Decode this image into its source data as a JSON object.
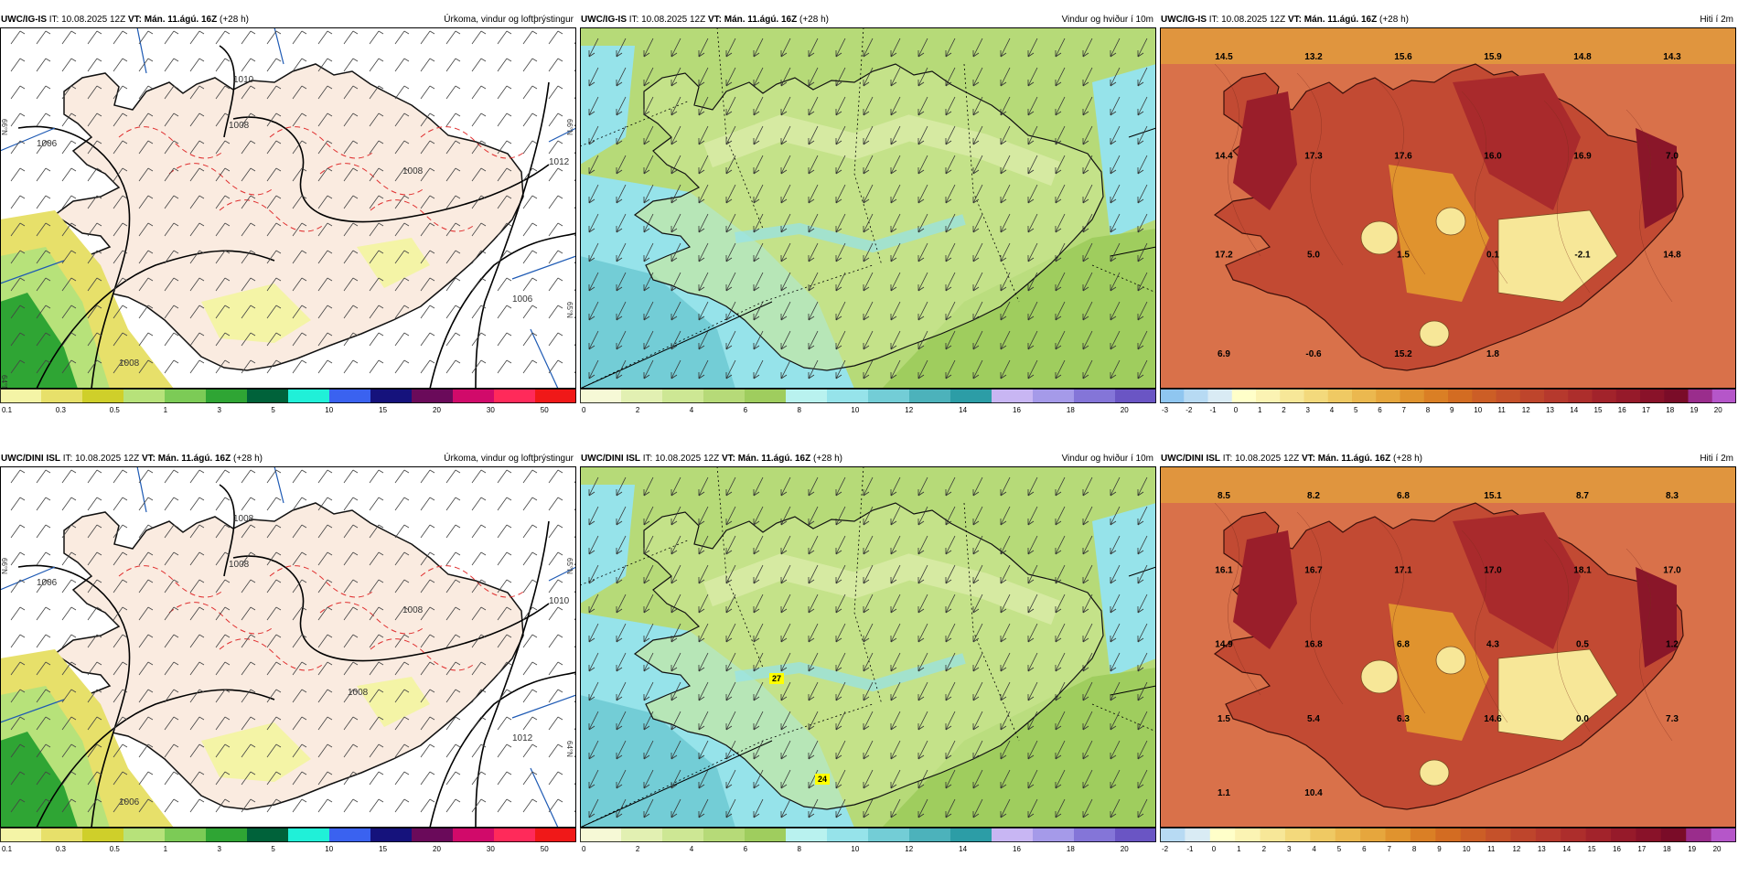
{
  "rows": [
    {
      "model": "UWC/IG-IS",
      "it": "IT: 10.08.2025 12Z",
      "vt": "VT: Mán. 11.ágú. 16Z",
      "lead": "(+28 h)",
      "panels": {
        "precip": {
          "title": "Úrkoma, vindur og loftþrýstingur",
          "isobars": [
            "1006",
            "1008",
            "1008",
            "1010",
            "1012",
            "1006",
            "1008"
          ],
          "lat_labels": [
            "66°N",
            "66°N",
            "65°N",
            "64°N"
          ]
        },
        "wind": {
          "title": "Vindur og hviður í 10m"
        },
        "temp": {
          "title": "Hiti í 2m",
          "values": [
            "14.5",
            "13.2",
            "15.6",
            "15.9",
            "14.8",
            "14.3",
            "14.4",
            "17.3",
            "17.6",
            "16.0",
            "16.9",
            "7.0",
            "17.2",
            "5.0",
            "1.5",
            "0.1",
            "-2.1",
            "14.8",
            "6.9",
            "-0.6",
            "15.2",
            "1.8"
          ]
        }
      }
    },
    {
      "model": "UWC/DINI ISL",
      "it": "IT: 10.08.2025 12Z",
      "vt": "VT: Mán. 11.ágú. 16Z",
      "lead": "(+28 h)",
      "panels": {
        "precip": {
          "title": "Úrkoma, vindur og loftþrýstingur",
          "isobars": [
            "1006",
            "1008",
            "1008",
            "1008",
            "1010",
            "1012",
            "1006",
            "1008"
          ],
          "lat_labels": [
            "66°N",
            "65°N",
            "64°N"
          ]
        },
        "wind": {
          "title": "Vindur og hviður í 10m",
          "gusts": [
            "27",
            "24"
          ]
        },
        "temp": {
          "title": "Hiti í 2m",
          "values": [
            "8.5",
            "8.2",
            "6.8",
            "15.1",
            "8.7",
            "8.3",
            "16.1",
            "16.7",
            "17.1",
            "17.0",
            "18.1",
            "17.0",
            "14.9",
            "16.8",
            "6.8",
            "4.3",
            "0.5",
            "1.2",
            "1.5",
            "5.4",
            "6.3",
            "14.6",
            "0.0",
            "7.3",
            "1.1",
            "10.4"
          ]
        }
      }
    }
  ],
  "colorbars": {
    "precip": {
      "ticks": [
        "0.1",
        "0.3",
        "0.5",
        "1",
        "3",
        "5",
        "10",
        "15",
        "20",
        "30",
        "50"
      ],
      "colors": [
        "#f4f4a6",
        "#e7e06a",
        "#cfcf2a",
        "#b7e27a",
        "#7ccb56",
        "#2fa534",
        "#00623a",
        "#20f0d8",
        "#3a62f0",
        "#15127c",
        "#6a0a5a",
        "#d10a6a",
        "#ff2a5a",
        "#f01818"
      ]
    },
    "wind": {
      "ticks": [
        "0",
        "2",
        "4",
        "6",
        "8",
        "10",
        "12",
        "14",
        "16",
        "18",
        "20"
      ],
      "colors": [
        "#f6f9d6",
        "#e2f0b2",
        "#cde794",
        "#b6da78",
        "#9fcd5e",
        "#b9f2ef",
        "#96e3ea",
        "#73cdd6",
        "#4cb2bb",
        "#2c9da6",
        "#c8b6f3",
        "#a59ae9",
        "#8475d8",
        "#6a55c4"
      ]
    },
    "temp_row1": {
      "ticks": [
        "-3",
        "-2",
        "-1",
        "0",
        "1",
        "2",
        "3",
        "4",
        "5",
        "6",
        "7",
        "8",
        "9",
        "10",
        "11",
        "12",
        "13",
        "14",
        "15",
        "16",
        "17",
        "18",
        "19",
        "20"
      ],
      "colors": [
        "#8fc6f0",
        "#b7daf3",
        "#d9ebf4",
        "#ffffc9",
        "#fbf3b3",
        "#f7e798",
        "#f3d97c",
        "#efc963",
        "#ebb84f",
        "#e6a63d",
        "#e0932e",
        "#da7f25",
        "#d36c22",
        "#cc5e26",
        "#c5512a",
        "#be452c",
        "#b6392d",
        "#ad2e2c",
        "#a2232b",
        "#961a2a",
        "#891229",
        "#7a0c28",
        "#9a2d8c",
        "#b556c9"
      ]
    },
    "temp_row2": {
      "ticks": [
        "-2",
        "-1",
        "0",
        "1",
        "2",
        "3",
        "4",
        "5",
        "6",
        "7",
        "8",
        "9",
        "10",
        "11",
        "12",
        "13",
        "14",
        "15",
        "16",
        "17",
        "18",
        "19",
        "20"
      ],
      "colors": [
        "#b7daf3",
        "#d9ebf4",
        "#ffffc9",
        "#fbf3b3",
        "#f7e798",
        "#f3d97c",
        "#efc963",
        "#ebb84f",
        "#e6a63d",
        "#e0932e",
        "#da7f25",
        "#d36c22",
        "#cc5e26",
        "#c5512a",
        "#be452c",
        "#b6392d",
        "#ad2e2c",
        "#a2232b",
        "#961a2a",
        "#891229",
        "#7a0c28",
        "#9a2d8c",
        "#b556c9"
      ]
    }
  },
  "map_colors": {
    "land": "#faebe0",
    "sea": "#ffffff",
    "contour_dashed": "#e03030",
    "grid": "#1e5ab4"
  }
}
